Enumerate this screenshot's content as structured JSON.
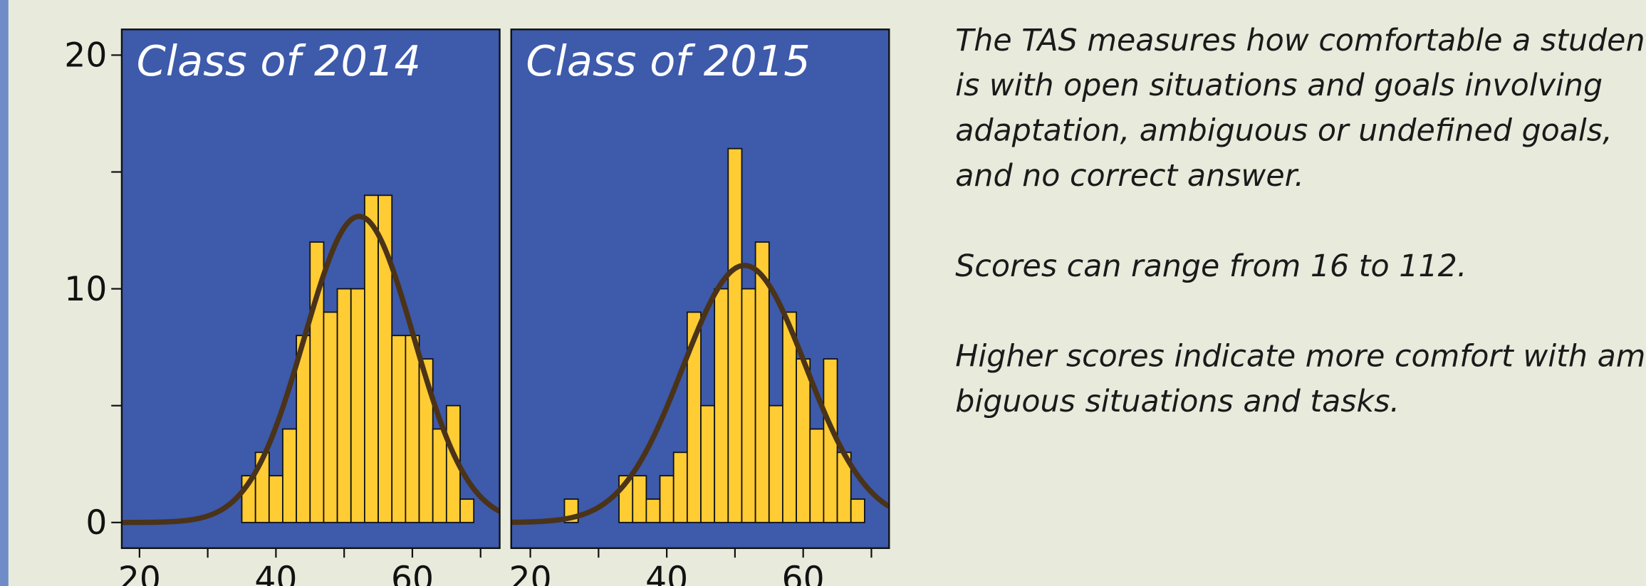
{
  "chart_data": [
    {
      "type": "histogram",
      "title": "Class of 2014",
      "bins": [
        35,
        37,
        39,
        41,
        43,
        45,
        47,
        49,
        51,
        53,
        55,
        57,
        59,
        61,
        63,
        65,
        67,
        69
      ],
      "counts": [
        2,
        3,
        2,
        4,
        8,
        12,
        9,
        10,
        10,
        14,
        14,
        8,
        8,
        7,
        4,
        5,
        1
      ],
      "color": "#ffcc33",
      "curve": {
        "mean": 52.2,
        "sd": 8,
        "peak": 13.1,
        "color": "#4a3318"
      },
      "xlim": [
        17.4,
        72.8
      ],
      "xticks": [
        20,
        40,
        60
      ],
      "xminor_ticks": [
        30,
        50,
        70
      ],
      "ylim": [
        -1.1,
        21.1
      ],
      "yticks": [
        0,
        10,
        20
      ],
      "yminor_ticks": [
        5,
        15
      ]
    },
    {
      "type": "histogram",
      "title": "Class of 2015",
      "bins": [
        25,
        27,
        29,
        31,
        33,
        35,
        37,
        39,
        41,
        43,
        45,
        47,
        49,
        51,
        53,
        55,
        57,
        59,
        61,
        63,
        65,
        67,
        69
      ],
      "counts": [
        1,
        0,
        0,
        0,
        2,
        2,
        1,
        2,
        3,
        9,
        5,
        10,
        16,
        10,
        12,
        5,
        9,
        7,
        4,
        7,
        3,
        1
      ],
      "color": "#ffcc33",
      "curve": {
        "mean": 51.4,
        "sd": 9,
        "peak": 11,
        "color": "#4a3318"
      },
      "xlim": [
        17.2,
        72.6
      ],
      "xticks": [
        20,
        40,
        60
      ],
      "xminor_ticks": [
        30,
        50,
        70
      ],
      "ylim": [
        -1.1,
        21.1
      ]
    }
  ],
  "notes": [
    [
      "The TAS measures how comfortable a student",
      "is with open situations and goals involving",
      "adaptation, ambiguous or undefined goals,",
      "and no correct answer."
    ],
    [
      "Scores can range from 16 to 112."
    ],
    [
      "Higher scores indicate more comfort with am-",
      "biguous situations and tasks."
    ]
  ]
}
